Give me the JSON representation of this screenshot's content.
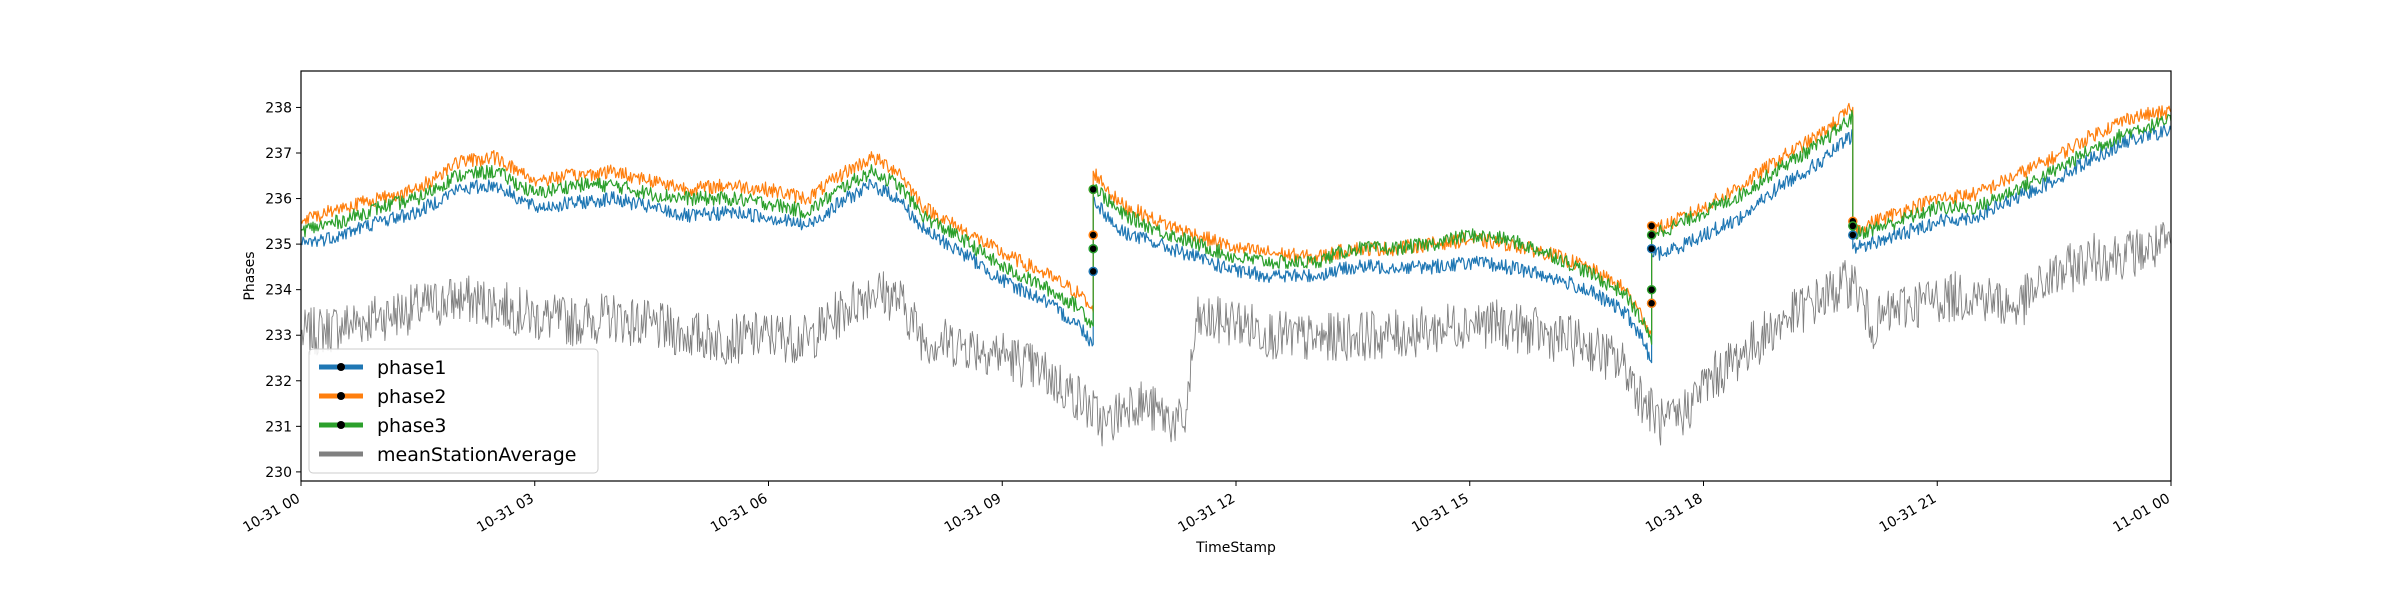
{
  "chart_data": {
    "type": "line",
    "title": "",
    "xlabel": "TimeStamp",
    "ylabel": "Phases",
    "x_range": [
      "2023-10-31 00:00",
      "2023-11-01 00:00"
    ],
    "ylim": [
      229.8,
      238.8
    ],
    "grid": false,
    "legend_position": "lower-left",
    "x_tick_labels": [
      "10-31 00",
      "10-31 03",
      "10-31 06",
      "10-31 09",
      "10-31 12",
      "10-31 15",
      "10-31 18",
      "10-31 21",
      "11-01 00"
    ],
    "y_ticks": [
      230,
      231,
      232,
      233,
      234,
      235,
      236,
      237,
      238
    ],
    "series": [
      {
        "name": "phase1",
        "color": "#1f77b4",
        "x": [
          "00:00",
          "00:30",
          "01:00",
          "01:30",
          "02:00",
          "02:30",
          "03:00",
          "03:30",
          "04:00",
          "04:30",
          "05:00",
          "05:30",
          "06:00",
          "06:30",
          "07:00",
          "07:20",
          "07:40",
          "08:00",
          "08:30",
          "09:00",
          "09:30",
          "10:00",
          "10:10",
          "10:10",
          "10:30",
          "11:00",
          "11:30",
          "12:00",
          "12:30",
          "13:00",
          "13:30",
          "14:00",
          "14:30",
          "15:00",
          "15:30",
          "16:00",
          "16:30",
          "17:00",
          "17:15",
          "17:20",
          "17:20",
          "17:30",
          "18:00",
          "18:30",
          "19:00",
          "19:30",
          "19:55",
          "19:55",
          "20:30",
          "21:00",
          "21:30",
          "22:00",
          "22:30",
          "23:00",
          "23:30",
          "24:00"
        ],
        "y": [
          235.0,
          235.2,
          235.5,
          235.7,
          236.2,
          236.3,
          235.8,
          235.9,
          236.0,
          235.8,
          235.6,
          235.7,
          235.6,
          235.4,
          236.0,
          236.3,
          236.0,
          235.3,
          234.8,
          234.2,
          233.8,
          233.2,
          232.8,
          236.0,
          235.3,
          235.0,
          234.7,
          234.4,
          234.3,
          234.3,
          234.5,
          234.5,
          234.5,
          234.6,
          234.5,
          234.3,
          234.0,
          233.5,
          232.8,
          232.4,
          234.8,
          234.8,
          235.2,
          235.6,
          236.3,
          236.8,
          237.4,
          234.9,
          235.2,
          235.5,
          235.6,
          236.0,
          236.4,
          236.9,
          237.3,
          237.5
        ]
      },
      {
        "name": "phase2",
        "color": "#ff7f0e",
        "x": [
          "00:00",
          "00:30",
          "01:00",
          "01:30",
          "02:00",
          "02:30",
          "03:00",
          "03:30",
          "04:00",
          "04:30",
          "05:00",
          "05:30",
          "06:00",
          "06:30",
          "07:00",
          "07:20",
          "07:40",
          "08:00",
          "08:30",
          "09:00",
          "09:30",
          "10:00",
          "10:10",
          "10:10",
          "10:30",
          "11:00",
          "11:30",
          "12:00",
          "12:30",
          "13:00",
          "13:30",
          "14:00",
          "14:30",
          "15:00",
          "15:30",
          "16:00",
          "16:30",
          "17:00",
          "17:15",
          "17:20",
          "17:20",
          "17:30",
          "18:00",
          "18:30",
          "19:00",
          "19:30",
          "19:55",
          "19:55",
          "20:30",
          "21:00",
          "21:30",
          "22:00",
          "22:30",
          "23:00",
          "23:30",
          "24:00"
        ],
        "y": [
          235.5,
          235.8,
          236.0,
          236.2,
          236.8,
          236.9,
          236.4,
          236.5,
          236.6,
          236.4,
          236.2,
          236.3,
          236.2,
          236.0,
          236.6,
          236.9,
          236.6,
          235.8,
          235.3,
          234.8,
          234.4,
          233.9,
          233.5,
          236.6,
          235.9,
          235.5,
          235.2,
          234.9,
          234.8,
          234.7,
          234.9,
          234.9,
          235.0,
          235.1,
          235.0,
          234.8,
          234.5,
          234.0,
          233.3,
          233.0,
          235.3,
          235.4,
          235.8,
          236.3,
          236.9,
          237.4,
          238.0,
          235.3,
          235.7,
          236.0,
          236.1,
          236.5,
          236.9,
          237.4,
          237.8,
          237.9
        ]
      },
      {
        "name": "phase3",
        "color": "#2ca02c",
        "x": [
          "00:00",
          "00:30",
          "01:00",
          "01:30",
          "02:00",
          "02:30",
          "03:00",
          "03:30",
          "04:00",
          "04:30",
          "05:00",
          "05:30",
          "06:00",
          "06:30",
          "07:00",
          "07:20",
          "07:40",
          "08:00",
          "08:30",
          "09:00",
          "09:30",
          "10:00",
          "10:10",
          "10:10",
          "10:30",
          "11:00",
          "11:30",
          "12:00",
          "12:30",
          "13:00",
          "13:30",
          "14:00",
          "14:30",
          "15:00",
          "15:30",
          "16:00",
          "16:30",
          "17:00",
          "17:15",
          "17:20",
          "17:20",
          "17:30",
          "18:00",
          "18:30",
          "19:00",
          "19:30",
          "19:55",
          "19:55",
          "20:30",
          "21:00",
          "21:30",
          "22:00",
          "22:30",
          "23:00",
          "23:30",
          "24:00"
        ],
        "y": [
          235.3,
          235.5,
          235.8,
          236.0,
          236.5,
          236.6,
          236.1,
          236.3,
          236.3,
          236.1,
          236.0,
          236.0,
          235.9,
          235.7,
          236.3,
          236.6,
          236.3,
          235.6,
          235.1,
          234.5,
          234.1,
          233.6,
          233.2,
          236.3,
          235.7,
          235.3,
          235.0,
          234.7,
          234.6,
          234.6,
          234.9,
          234.9,
          235.0,
          235.2,
          235.1,
          234.8,
          234.4,
          233.9,
          233.2,
          232.8,
          235.3,
          235.3,
          235.7,
          236.1,
          236.7,
          237.2,
          237.8,
          235.2,
          235.5,
          235.8,
          235.8,
          236.2,
          236.6,
          237.1,
          237.5,
          237.7
        ]
      },
      {
        "name": "meanStationAverage",
        "color": "#808080",
        "x": [
          "00:00",
          "00:30",
          "01:00",
          "01:30",
          "02:00",
          "02:30",
          "03:00",
          "03:30",
          "04:00",
          "04:30",
          "05:00",
          "05:30",
          "06:00",
          "06:30",
          "07:00",
          "07:20",
          "07:40",
          "08:00",
          "08:30",
          "09:00",
          "09:30",
          "10:00",
          "10:20",
          "10:40",
          "11:00",
          "11:20",
          "11:30",
          "12:00",
          "12:30",
          "13:00",
          "13:30",
          "14:00",
          "14:30",
          "15:00",
          "15:30",
          "16:00",
          "16:30",
          "17:00",
          "17:15",
          "17:30",
          "17:45",
          "18:00",
          "18:30",
          "19:00",
          "19:30",
          "19:55",
          "20:10",
          "20:30",
          "21:00",
          "21:30",
          "22:00",
          "22:30",
          "23:00",
          "23:30",
          "24:00"
        ],
        "y": [
          233.0,
          233.2,
          233.4,
          233.6,
          233.8,
          233.7,
          233.4,
          233.3,
          233.4,
          233.2,
          233.0,
          232.9,
          233.0,
          232.9,
          233.6,
          234.0,
          233.8,
          232.9,
          232.8,
          232.6,
          232.2,
          231.6,
          231.0,
          231.6,
          231.3,
          231.0,
          233.3,
          233.3,
          233.0,
          232.9,
          233.0,
          233.0,
          233.1,
          233.3,
          233.2,
          233.0,
          232.8,
          232.3,
          231.5,
          231.0,
          231.3,
          231.9,
          232.6,
          233.3,
          233.8,
          234.2,
          233.2,
          233.6,
          233.8,
          233.9,
          233.6,
          234.3,
          234.7,
          234.8,
          235.0
        ]
      }
    ],
    "step_markers": {
      "phase1": [
        [
          "10:10",
          234.4
        ],
        [
          "10:10",
          234.9
        ],
        [
          "17:20",
          233.7
        ],
        [
          "17:20",
          234.9
        ],
        [
          "19:55",
          235.2
        ]
      ],
      "phase2": [
        [
          "10:10",
          236.2
        ],
        [
          "10:10",
          235.2
        ],
        [
          "17:20",
          233.7
        ],
        [
          "17:20",
          235.4
        ],
        [
          "19:55",
          235.5
        ]
      ],
      "phase3": [
        [
          "10:10",
          234.9
        ],
        [
          "10:10",
          236.2
        ],
        [
          "17:20",
          234.0
        ],
        [
          "17:20",
          235.2
        ],
        [
          "19:55",
          235.4
        ]
      ]
    }
  }
}
